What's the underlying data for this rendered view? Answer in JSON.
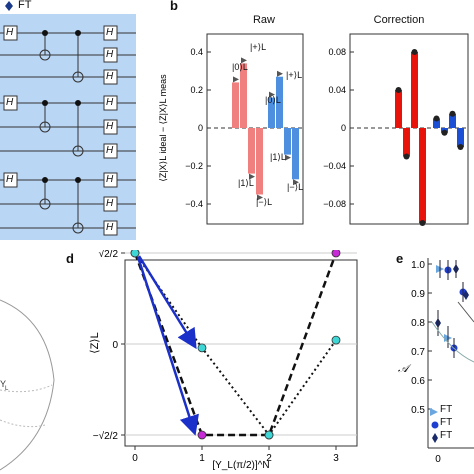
{
  "panel_a": {
    "legend_ft": "FT",
    "gate_h": "H",
    "bg_color": "#b9d6f5",
    "blocks": 3
  },
  "panel_b": {
    "letter": "b",
    "left_title": "Raw",
    "right_title": "Correction",
    "ylabel": "⟨Z|X⟩L ideal − ⟨Z|X⟩L meas",
    "left_ticks": [
      "0.4",
      "0.2",
      "0",
      "−0.2",
      "−0.4"
    ],
    "right_ticks": [
      "0.08",
      "0.04",
      "0",
      "−0.04",
      "−0.08"
    ],
    "colors": {
      "red": "#f08080",
      "blue": "#4f8fe0",
      "strong_red": "#e8140c",
      "strong_blue": "#1b4fd6"
    }
  },
  "panel_d": {
    "letter": "d",
    "xlabel": "[Y_L(π/2)]^N",
    "ylabel": "⟨Z⟩L",
    "xticks": [
      "0",
      "1",
      "2",
      "3"
    ],
    "yticks": [
      "√2/2",
      "0",
      "−√2/2"
    ]
  },
  "panel_e": {
    "letter": "e",
    "ylabel": "𝒜",
    "yticks": [
      "1.0",
      "0.9",
      "0.8",
      "0.7",
      "0.6",
      "0.5"
    ],
    "xtick": "0",
    "legend": [
      "FT",
      "FT",
      "FT"
    ]
  },
  "chart_data": [
    {
      "type": "bar",
      "title": "Raw",
      "ylim": [
        -0.45,
        0.45
      ],
      "categories": [
        "|0⟩L",
        "|+⟩L",
        "|1⟩L",
        "|−⟩L",
        "|0⟩L",
        "|+⟩L",
        "|1⟩L",
        "|−⟩L"
      ],
      "series": [
        {
          "values": [
            0.24,
            0.34,
            -0.24,
            -0.35,
            0.16,
            0.27,
            -0.14,
            -0.27
          ]
        }
      ],
      "annotations": [
        "|+⟩L",
        "|0⟩L",
        "|1⟩L",
        "|−⟩L",
        "|0⟩L",
        "|+⟩L",
        "|1⟩L",
        "|−⟩L"
      ]
    },
    {
      "type": "bar",
      "title": "Correction",
      "ylim": [
        -0.1,
        0.1
      ],
      "series": [
        {
          "values": [
            0.04,
            -0.03,
            0.08,
            -0.1,
            0.01,
            -0.005,
            0.015,
            -0.02
          ]
        }
      ]
    },
    {
      "type": "line",
      "xlabel": "[Y_L(π/2)]^N",
      "ylabel": "⟨Z⟩L",
      "x": [
        0,
        1,
        2,
        3
      ],
      "series": [
        {
          "style": "dashed",
          "values": [
            0.707,
            -0.707,
            -0.707,
            0.707
          ]
        },
        {
          "style": "dotted",
          "values": [
            0.707,
            -0.03,
            -0.707,
            0.03
          ]
        }
      ]
    },
    {
      "type": "scatter",
      "ylabel": "𝒜",
      "ylim": [
        0.45,
        1.02
      ],
      "legend": [
        "FT",
        "FT",
        "FT"
      ]
    }
  ]
}
